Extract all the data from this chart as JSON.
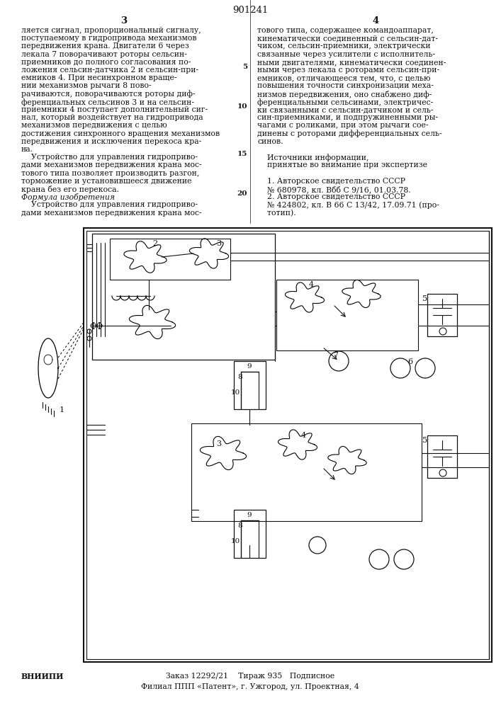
{
  "page_number": "901241",
  "background_color": "#f5f5f0",
  "text_color": "#1a1a1a",
  "margin_line_number": "5",
  "left_col_lines": [
    "ляется сигнал, пропорциональный сигналу,",
    "поступаемому в гидропривода механизмов",
    "передвижения крана. Двигатели 6 через",
    "лекала 7 поворачивают роторы сельсин-",
    "приемников до полного согласования по-",
    "ложения сельсин-датчика 2 и сельсин-при-",
    "емников 4. При несинхронном враще-",
    "нии механизмов рычаги 8 пово-",
    "рачиваются, поворачиваются роторы диф-",
    "ференциальных сельсинов 3 и на сельсин-",
    "приемники 4 поступает дополнительный сиг-",
    "нал, который воздействует на гидропривода",
    "механизмов передвижения с целью",
    "достижения синхронного вращения механизмов",
    "передвижения и исключения перекоса кра-",
    "на.",
    "    Устройство для управления гидроприво-",
    "дами механизмов передвижения крана мос-",
    "тового типа позволяет производить разгон,",
    "торможение и установившееся движение",
    "крана без его перекоса.",
    "Формула изобретения",
    "    Устройство для управления гидроприво-",
    "дами механизмов передвижения крана мос-"
  ],
  "right_col_lines": [
    "тового типа, содержащее командоаппарат,",
    "кинематически соединенный с сельсин-дат-",
    "чиком, сельсин-приемники, электрически",
    "связанные через усилители с исполнитель-",
    "ными двигателями, кинематически соединен-",
    "ными через лекала с роторами сельсин-при-",
    "емников, отличающееся тем, что, с целью",
    "повышения точности синхронизации меха-",
    "низмов передвижения, оно снабжено диф-",
    "ференциальными сельсинами, электричес-",
    "ки связанными с сельсин-датчиком и сель-",
    "син-приемниками, и подпружиненными ры-",
    "чагами с роликами, при этом рычаги сое-",
    "динены с роторами дифференциальных сель-",
    "синов.",
    "",
    "    Источники информации,",
    "    принятые во внимание при экспертизе",
    "",
    "    1. Авторское свидетельство СССР",
    "    № 680978, кл. Вбб С 9/16, 01.03.78.",
    "    2. Авторское свидетельство СССР",
    "    № 424802, кл. В 66 С 13/42, 17.09.71 (про-",
    "    тотип)."
  ],
  "footer_org": "ВНИИПИ",
  "footer_mid": "Заказ 12292/21    Тираж 935   Подписное",
  "footer_bot": "Филиал ППП «Патент», г. Ужгород, ул. Проектная, 4"
}
